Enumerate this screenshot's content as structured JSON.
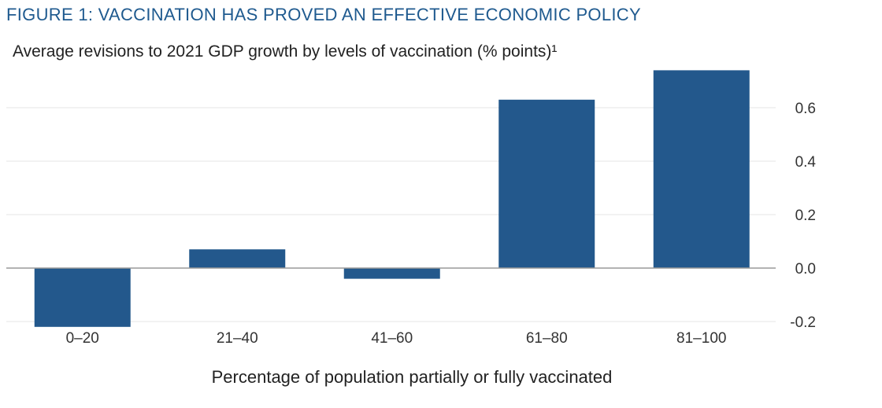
{
  "figure_title": "FIGURE 1: VACCINATION HAS PROVED AN EFFECTIVE ECONOMIC POLICY",
  "subtitle": "Average revisions to 2021 GDP growth by levels of vaccination (% points)¹",
  "footnote_fragment": "",
  "colors": {
    "bar": "#23588c",
    "title": "#1f5a8f",
    "grid": "#e6e6e6",
    "zero_line": "#9a9a9a"
  },
  "chart_data": {
    "type": "bar",
    "title": "",
    "xlabel": "Percentage of population partially or fully vaccinated",
    "ylabel": "",
    "categories": [
      "0–20",
      "21–40",
      "41–60",
      "61–80",
      "81–100"
    ],
    "values": [
      -0.22,
      0.07,
      -0.04,
      0.63,
      0.74
    ],
    "ylim": [
      -0.2,
      0.6
    ],
    "yticks": [
      0.6,
      0.4,
      0.2,
      0.0,
      -0.2
    ],
    "ytick_labels": [
      "0.6",
      "0.4",
      "0.2",
      "0.0",
      "-0.2"
    ],
    "grid": true,
    "y_axis_side": "right",
    "legend": "none"
  }
}
